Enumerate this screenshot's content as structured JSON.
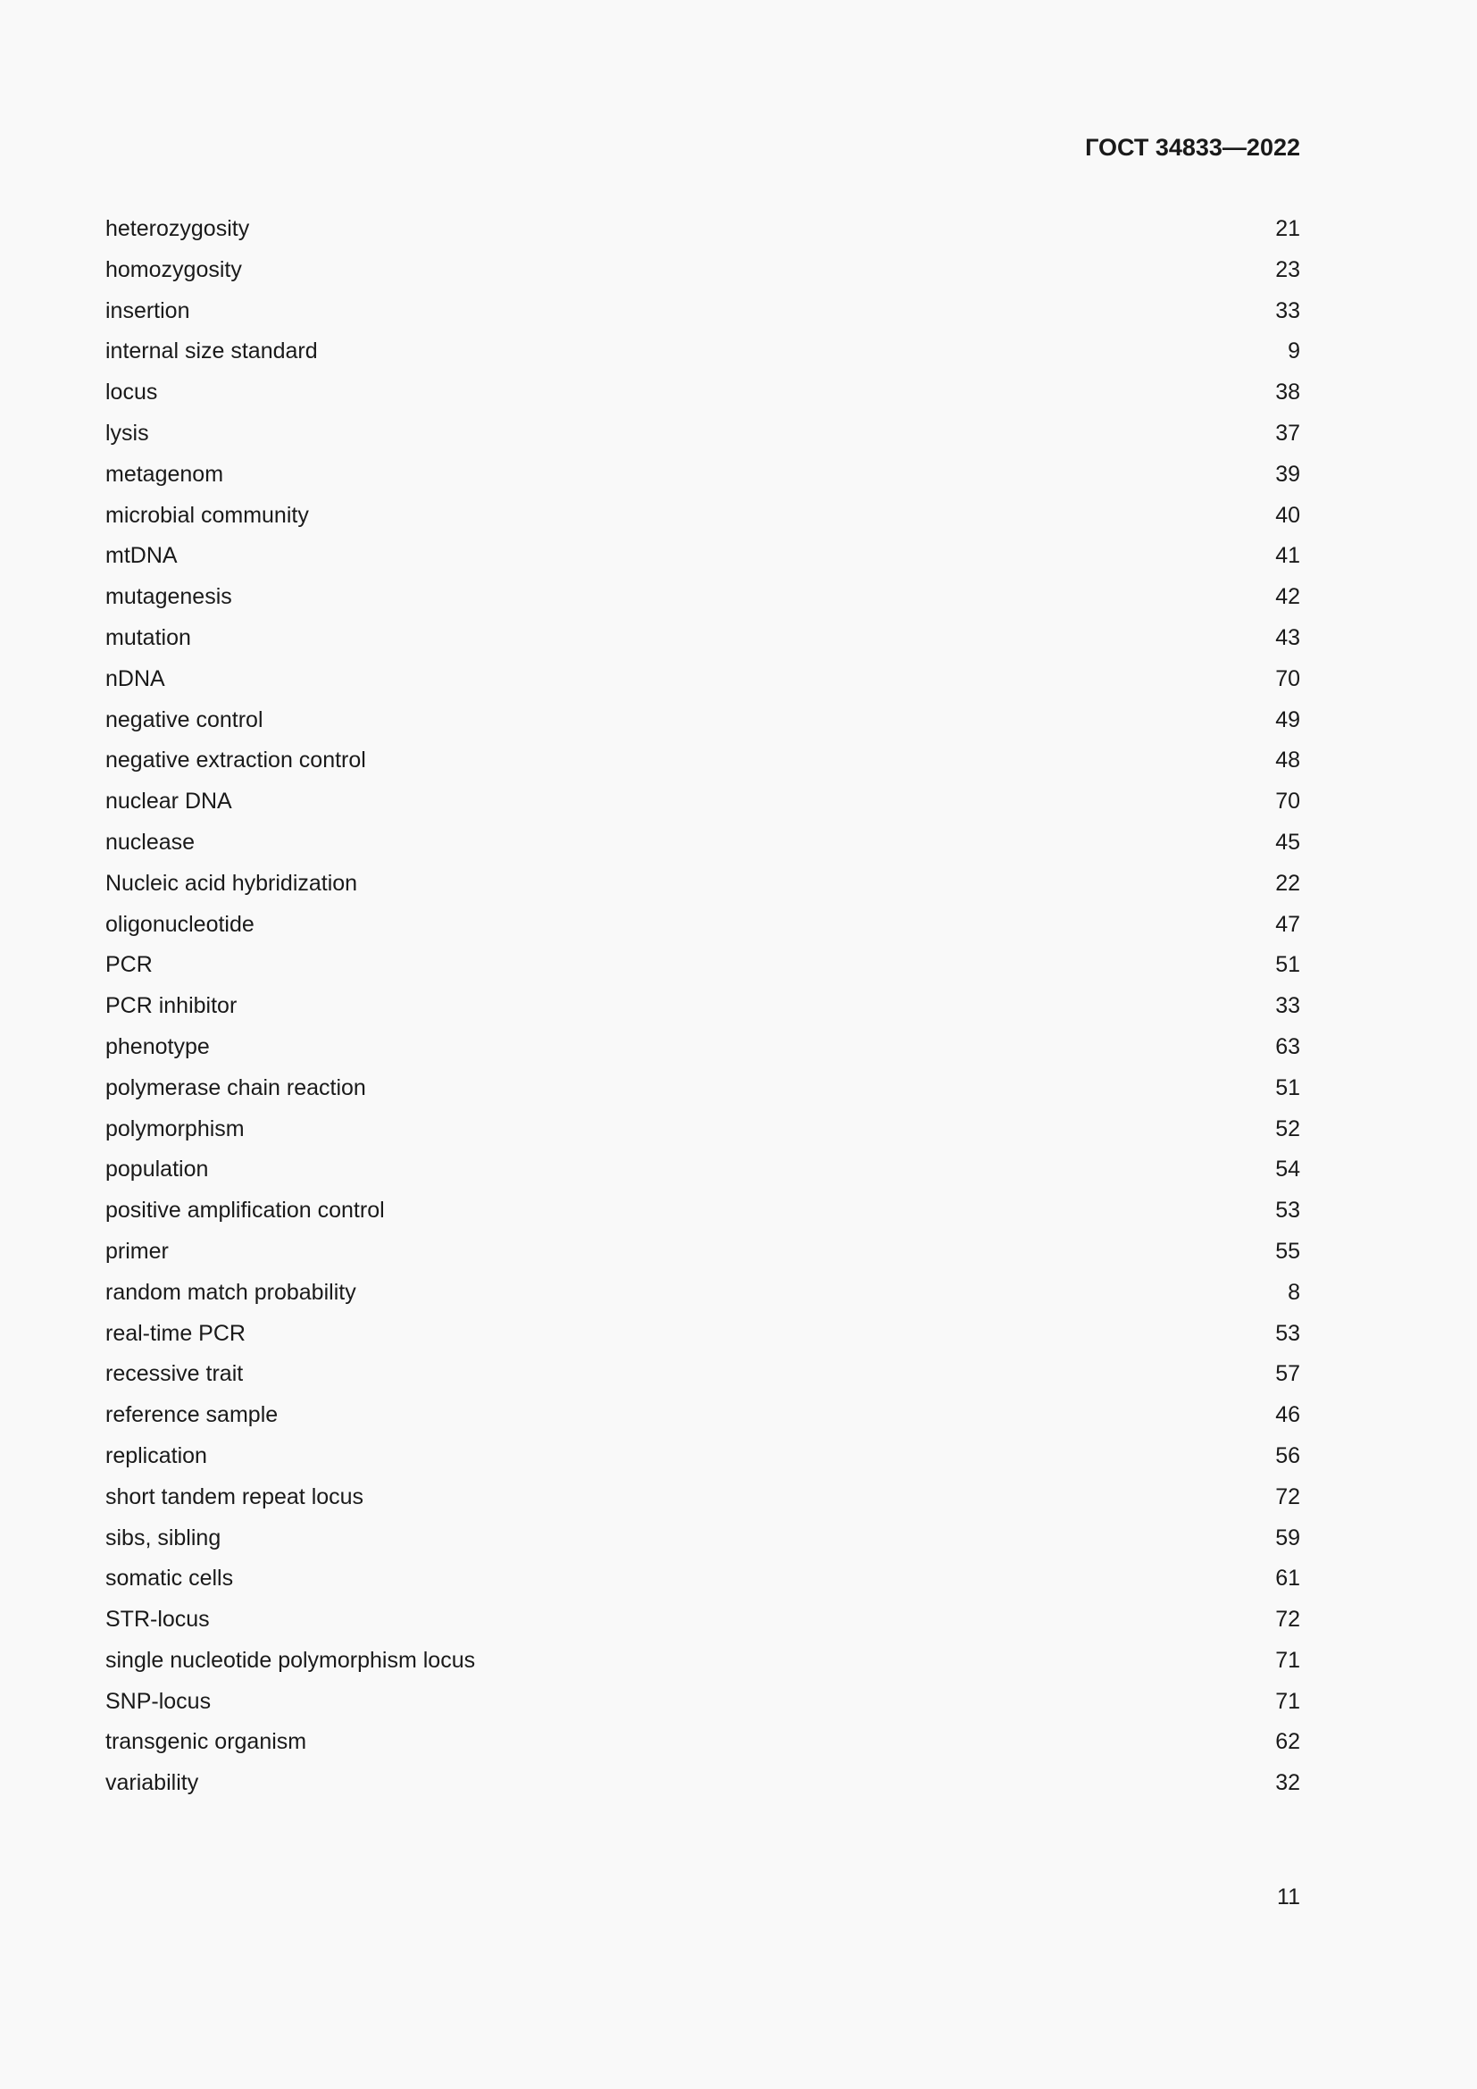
{
  "header": {
    "title": "ГОСТ 34833—2022"
  },
  "index": [
    {
      "term": "heterozygosity",
      "ref": "21"
    },
    {
      "term": "homozygosity",
      "ref": "23"
    },
    {
      "term": "insertion",
      "ref": "33"
    },
    {
      "term": "internal size standard",
      "ref": "9"
    },
    {
      "term": "locus",
      "ref": "38"
    },
    {
      "term": "lysis",
      "ref": "37"
    },
    {
      "term": "metagenom",
      "ref": "39"
    },
    {
      "term": "microbial community",
      "ref": "40"
    },
    {
      "term": "mtDNA",
      "ref": "41"
    },
    {
      "term": "mutagenesis",
      "ref": "42"
    },
    {
      "term": "mutation",
      "ref": "43"
    },
    {
      "term": "nDNA",
      "ref": "70"
    },
    {
      "term": "negative control",
      "ref": "49"
    },
    {
      "term": "negative extraction control",
      "ref": "48"
    },
    {
      "term": "nuclear DNA",
      "ref": "70"
    },
    {
      "term": "nuclease",
      "ref": "45"
    },
    {
      "term": "Nucleic acid hybridization",
      "ref": "22"
    },
    {
      "term": "oligonucleotide",
      "ref": "47"
    },
    {
      "term": "PCR",
      "ref": "51"
    },
    {
      "term": "PCR inhibitor",
      "ref": "33"
    },
    {
      "term": "phenotype",
      "ref": "63"
    },
    {
      "term": "polymerase chain reaction",
      "ref": "51"
    },
    {
      "term": "polymorphism",
      "ref": "52"
    },
    {
      "term": "population",
      "ref": "54"
    },
    {
      "term": "positive amplification control",
      "ref": "53"
    },
    {
      "term": "primer",
      "ref": "55"
    },
    {
      "term": "random match probability",
      "ref": "8"
    },
    {
      "term": "real-time PCR",
      "ref": "53"
    },
    {
      "term": "recessive trait",
      "ref": "57"
    },
    {
      "term": "reference sample",
      "ref": "46"
    },
    {
      "term": "replication",
      "ref": "56"
    },
    {
      "term": "short tandem repeat locus",
      "ref": "72"
    },
    {
      "term": "sibs, sibling",
      "ref": "59"
    },
    {
      "term": "somatic cells",
      "ref": "61"
    },
    {
      "term": "STR-locus",
      "ref": "72"
    },
    {
      "term": "single nucleotide polymorphism locus",
      "ref": "71"
    },
    {
      "term": "SNP-locus",
      "ref": "71"
    },
    {
      "term": "transgenic organism",
      "ref": "62"
    },
    {
      "term": "variability",
      "ref": "32"
    }
  ],
  "footer": {
    "page_number": "11"
  }
}
